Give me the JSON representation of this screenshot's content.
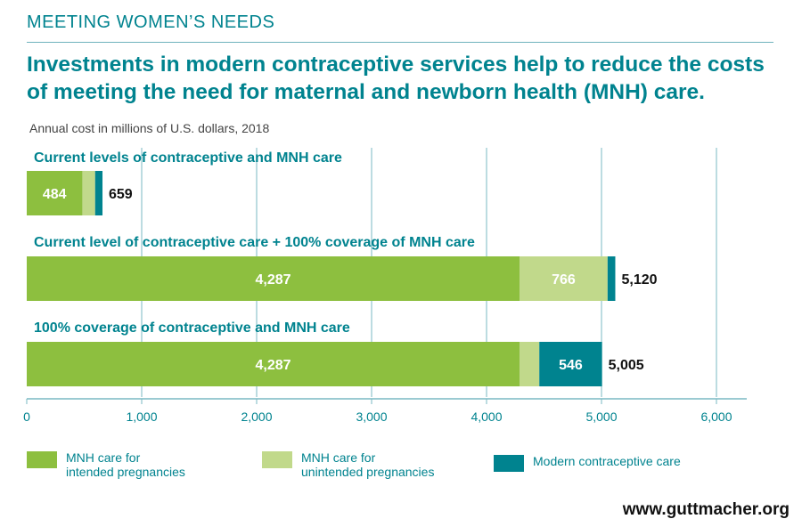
{
  "header": {
    "kicker": "MEETING WOMEN’S NEEDS",
    "headline": "Investments in modern contraceptive services help to reduce the costs of meeting the need for maternal and newborn health (MNH) care.",
    "unit_note": "Annual cost in millions of U.S. dollars, 2018"
  },
  "footer": {
    "wordmark": "www.guttmacher.org"
  },
  "colors": {
    "intended": "#8dbf3f",
    "unintended": "#c1d98b",
    "contraceptive": "#00838f",
    "teal_text": "#00838f",
    "grid": "#7ab9c3"
  },
  "chart_data": {
    "type": "bar",
    "orientation": "horizontal",
    "stacked": true,
    "xlim": [
      0,
      6000
    ],
    "x_ticks": [
      0,
      1000,
      2000,
      3000,
      4000,
      5000,
      6000
    ],
    "x_tick_labels": [
      "0",
      "1,000",
      "2,000",
      "3,000",
      "4,000",
      "5,000",
      "6,000"
    ],
    "grid": true,
    "legend_position": "bottom",
    "categories": [
      "Current levels of contraceptive and MNH care",
      "Current level of contraceptive care + 100% coverage of MNH care",
      "100% coverage of contraceptive and MNH care"
    ],
    "series": [
      {
        "name": "MNH care for\nintended pregnancies",
        "values": [
          484,
          4287,
          4287
        ],
        "labels": [
          "484",
          "4,287",
          "4,287"
        ]
      },
      {
        "name": "MNH care for\nunintended pregnancies",
        "values": [
          111,
          766,
          172
        ],
        "labels": [
          "",
          "766",
          ""
        ]
      },
      {
        "name": "Modern contraceptive care",
        "values": [
          64,
          67,
          546
        ],
        "labels": [
          "",
          "",
          "546"
        ]
      }
    ],
    "totals": [
      659,
      5120,
      5005
    ],
    "total_labels": [
      "659",
      "5,120",
      "5,005"
    ]
  }
}
